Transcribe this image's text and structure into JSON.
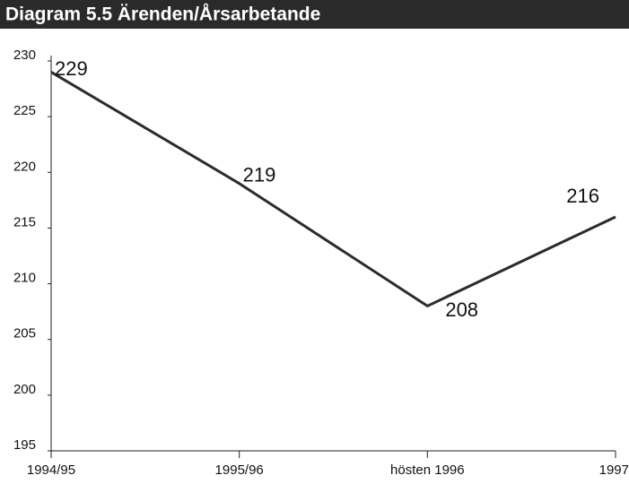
{
  "chart_data": {
    "type": "line",
    "title": "Diagram 5.5 Ärenden/Årsarbetande",
    "categories": [
      "1994/95",
      "1995/96",
      "hösten 1996",
      "1997"
    ],
    "values": [
      229,
      219,
      208,
      216
    ],
    "color": "#2b2b2b",
    "ylim": [
      195,
      230
    ],
    "yticks": [
      195,
      200,
      205,
      210,
      215,
      220,
      225,
      230
    ],
    "grid": false
  }
}
